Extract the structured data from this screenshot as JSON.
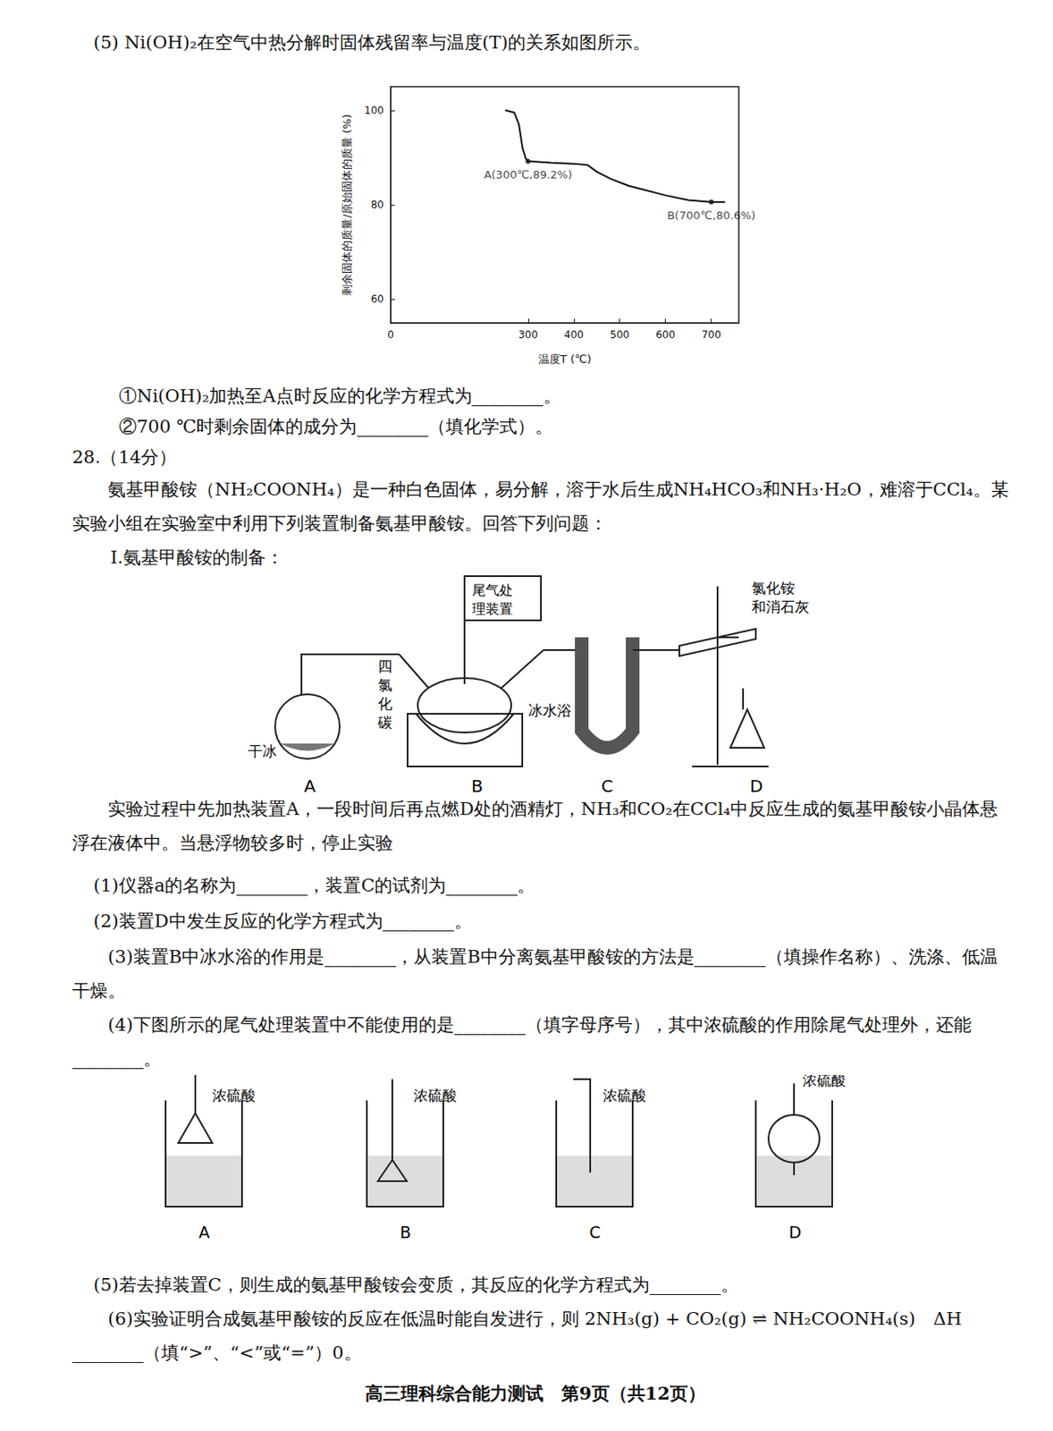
{
  "document": {
    "question5": {
      "stem": "(5) Ni(OH)₂在空气中热分解时固体残留率与温度(T)的关系如图所示。",
      "items": [
        "①Ni(OH)₂加热至A点时反应的化学方程式为________。",
        "②700 ℃时剩余固体的成分为________（填化学式）。"
      ]
    },
    "question28": {
      "number": "28.（14分）",
      "intro": "氨基甲酸铵（NH₂COONH₄）是一种白色固体，易分解，溶于水后生成NH₄HCO₃和NH₃·H₂O，难溶于CCl₄。某实验小组在实验室中利用下列装置制备氨基甲酸铵。回答下列问题：",
      "section": "Ⅰ.氨基甲酸铵的制备：",
      "apparatus": {
        "tail_gas": "尾气处理装置",
        "reagent_D": "氯化铵和消石灰",
        "solvent_B": "四氯化碳",
        "bath_B": "冰水浴",
        "reagent_A": "干冰",
        "labels": [
          "A",
          "B",
          "C",
          "D"
        ]
      },
      "procedure": "实验过程中先加热装置A，一段时间后再点燃D处的酒精灯，NH₃和CO₂在CCl₄中反应生成的氨基甲酸铵小晶体悬浮在液体中。当悬浮物较多时，停止实验",
      "q1": "(1)仪器a的名称为________，装置C的试剂为________。",
      "q2": "(2)装置D中发生反应的化学方程式为________。",
      "q3": "(3)装置B中冰水浴的作用是________，从装置B中分离氨基甲酸铵的方法是________（填操作名称）、洗涤、低温干燥。",
      "q4": "(4)下图所示的尾气处理装置中不能使用的是________（填字母序号），其中浓硫酸的作用除尾气处理外，还能________。",
      "options": {
        "liquid": "浓硫酸",
        "labels": [
          "A",
          "B",
          "C",
          "D"
        ]
      },
      "q5": "(5)若去掉装置C，则生成的氨基甲酸铵会变质，其反应的化学方程式为________。",
      "q6": "(6)实验证明合成氨基甲酸铵的反应在低温时能自发进行，则 2NH₃(g) + CO₂(g) ⇌ NH₂COONH₄(s)　ΔH ________（填“>”、“<”或“=”）0。"
    },
    "footer": "高三理科综合能力测试　第9页（共12页）"
  },
  "chart_data": {
    "type": "line",
    "xlabel": "温度T (℃)",
    "ylabel": "剩余固体的质量/原始固体的质量 (%)",
    "x": [
      250,
      270,
      280,
      288,
      295,
      300,
      350,
      400,
      430,
      450,
      480,
      520,
      600,
      650,
      700,
      730
    ],
    "values": [
      100,
      99.5,
      97,
      92,
      89.8,
      89.2,
      88.9,
      88.7,
      88.4,
      87,
      85.5,
      84,
      82,
      81,
      80.6,
      80.6
    ],
    "color": "#111111",
    "xlim": [
      0,
      760
    ],
    "xticks": [
      0,
      300,
      400,
      500,
      600,
      700
    ],
    "ylim": [
      55,
      105
    ],
    "yticks": [
      60,
      80,
      100
    ],
    "grid": false,
    "annotations": [
      {
        "text": "A(300℃,89.2%)",
        "x": 300,
        "y": 89.2
      },
      {
        "text": "B(700℃,80.6%)",
        "x": 700,
        "y": 80.6
      }
    ]
  }
}
